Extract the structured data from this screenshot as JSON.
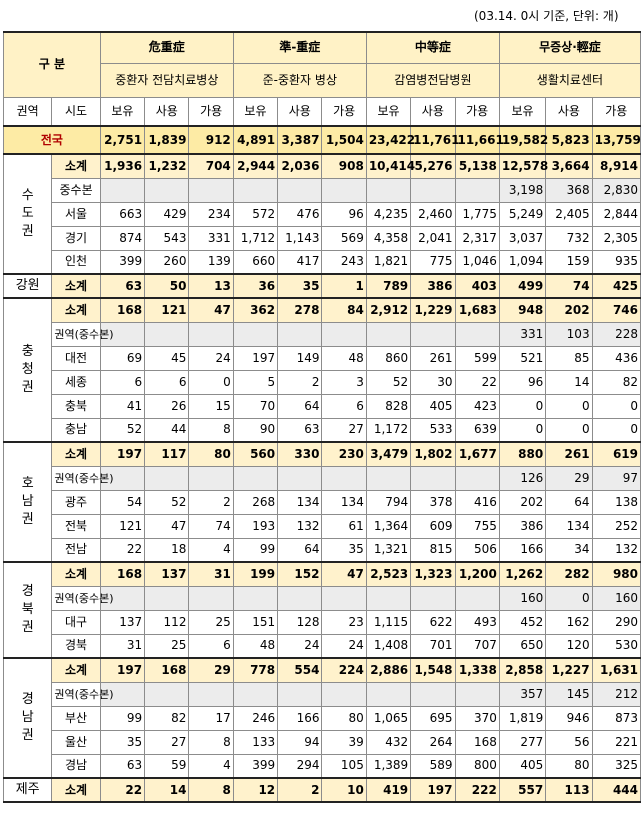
{
  "note": "(03.14. 0시 기준, 단위: 개)",
  "header": {
    "gubun": "구 분",
    "groups": [
      {
        "title": "危重症",
        "sub": "중환자 전담치료병상"
      },
      {
        "title": "準-重症",
        "sub": "준-중환자 병상"
      },
      {
        "title": "中等症",
        "sub": "감염병전담병원"
      },
      {
        "title": "무증상·輕症",
        "sub": "생활치료센터"
      }
    ],
    "region_col": "권역",
    "city_col": "시도",
    "metrics": [
      "보유",
      "사용",
      "가용"
    ]
  },
  "national": {
    "label": "전국",
    "values": [
      "2,751",
      "1,839",
      "912",
      "4,891",
      "3,387",
      "1,504",
      "23,422",
      "11,761",
      "11,661",
      "19,582",
      "5,823",
      "13,759"
    ]
  },
  "regions": [
    {
      "name": "수도권",
      "chars": [
        "수",
        "도",
        "권"
      ],
      "rows": [
        {
          "city": "소계",
          "type": "sub",
          "values": [
            "1,936",
            "1,232",
            "704",
            "2,944",
            "2,036",
            "908",
            "10,414",
            "5,276",
            "5,138",
            "12,578",
            "3,664",
            "8,914"
          ]
        },
        {
          "city": "중수본",
          "type": "hub",
          "values": [
            "",
            "",
            "",
            "",
            "",
            "",
            "",
            "",
            "",
            "3,198",
            "368",
            "2,830"
          ]
        },
        {
          "city": "서울",
          "type": "city",
          "values": [
            "663",
            "429",
            "234",
            "572",
            "476",
            "96",
            "4,235",
            "2,460",
            "1,775",
            "5,249",
            "2,405",
            "2,844"
          ]
        },
        {
          "city": "경기",
          "type": "city",
          "values": [
            "874",
            "543",
            "331",
            "1,712",
            "1,143",
            "569",
            "4,358",
            "2,041",
            "2,317",
            "3,037",
            "732",
            "2,305"
          ]
        },
        {
          "city": "인천",
          "type": "city",
          "values": [
            "399",
            "260",
            "139",
            "660",
            "417",
            "243",
            "1,821",
            "775",
            "1,046",
            "1,094",
            "159",
            "935"
          ]
        }
      ]
    },
    {
      "name": "강원",
      "chars": [
        "강원"
      ],
      "rows": [
        {
          "city": "소계",
          "type": "sub",
          "values": [
            "63",
            "50",
            "13",
            "36",
            "35",
            "1",
            "789",
            "386",
            "403",
            "499",
            "74",
            "425"
          ]
        }
      ]
    },
    {
      "name": "충청권",
      "chars": [
        "충",
        "청",
        "권"
      ],
      "rows": [
        {
          "city": "소계",
          "type": "sub",
          "values": [
            "168",
            "121",
            "47",
            "362",
            "278",
            "84",
            "2,912",
            "1,229",
            "1,683",
            "948",
            "202",
            "746"
          ]
        },
        {
          "city": "권역(중수본)",
          "type": "hub",
          "values": [
            "",
            "",
            "",
            "",
            "",
            "",
            "",
            "",
            "",
            "331",
            "103",
            "228"
          ]
        },
        {
          "city": "대전",
          "type": "city",
          "values": [
            "69",
            "45",
            "24",
            "197",
            "149",
            "48",
            "860",
            "261",
            "599",
            "521",
            "85",
            "436"
          ]
        },
        {
          "city": "세종",
          "type": "city",
          "values": [
            "6",
            "6",
            "0",
            "5",
            "2",
            "3",
            "52",
            "30",
            "22",
            "96",
            "14",
            "82"
          ]
        },
        {
          "city": "충북",
          "type": "city",
          "values": [
            "41",
            "26",
            "15",
            "70",
            "64",
            "6",
            "828",
            "405",
            "423",
            "0",
            "0",
            "0"
          ]
        },
        {
          "city": "충남",
          "type": "city",
          "values": [
            "52",
            "44",
            "8",
            "90",
            "63",
            "27",
            "1,172",
            "533",
            "639",
            "0",
            "0",
            "0"
          ]
        }
      ]
    },
    {
      "name": "호남권",
      "chars": [
        "호",
        "남",
        "권"
      ],
      "rows": [
        {
          "city": "소계",
          "type": "sub",
          "values": [
            "197",
            "117",
            "80",
            "560",
            "330",
            "230",
            "3,479",
            "1,802",
            "1,677",
            "880",
            "261",
            "619"
          ]
        },
        {
          "city": "권역(중수본)",
          "type": "hub",
          "values": [
            "",
            "",
            "",
            "",
            "",
            "",
            "",
            "",
            "",
            "126",
            "29",
            "97"
          ]
        },
        {
          "city": "광주",
          "type": "city",
          "values": [
            "54",
            "52",
            "2",
            "268",
            "134",
            "134",
            "794",
            "378",
            "416",
            "202",
            "64",
            "138"
          ]
        },
        {
          "city": "전북",
          "type": "city",
          "values": [
            "121",
            "47",
            "74",
            "193",
            "132",
            "61",
            "1,364",
            "609",
            "755",
            "386",
            "134",
            "252"
          ]
        },
        {
          "city": "전남",
          "type": "city",
          "values": [
            "22",
            "18",
            "4",
            "99",
            "64",
            "35",
            "1,321",
            "815",
            "506",
            "166",
            "34",
            "132"
          ]
        }
      ]
    },
    {
      "name": "경북권",
      "chars": [
        "경",
        "북",
        "권"
      ],
      "rows": [
        {
          "city": "소계",
          "type": "sub",
          "values": [
            "168",
            "137",
            "31",
            "199",
            "152",
            "47",
            "2,523",
            "1,323",
            "1,200",
            "1,262",
            "282",
            "980"
          ]
        },
        {
          "city": "권역(중수본)",
          "type": "hub",
          "values": [
            "",
            "",
            "",
            "",
            "",
            "",
            "",
            "",
            "",
            "160",
            "0",
            "160"
          ]
        },
        {
          "city": "대구",
          "type": "city",
          "values": [
            "137",
            "112",
            "25",
            "151",
            "128",
            "23",
            "1,115",
            "622",
            "493",
            "452",
            "162",
            "290"
          ]
        },
        {
          "city": "경북",
          "type": "city",
          "values": [
            "31",
            "25",
            "6",
            "48",
            "24",
            "24",
            "1,408",
            "701",
            "707",
            "650",
            "120",
            "530"
          ]
        }
      ]
    },
    {
      "name": "경남권",
      "chars": [
        "경",
        "남",
        "권"
      ],
      "rows": [
        {
          "city": "소계",
          "type": "sub",
          "values": [
            "197",
            "168",
            "29",
            "778",
            "554",
            "224",
            "2,886",
            "1,548",
            "1,338",
            "2,858",
            "1,227",
            "1,631"
          ]
        },
        {
          "city": "권역(중수본)",
          "type": "hub",
          "values": [
            "",
            "",
            "",
            "",
            "",
            "",
            "",
            "",
            "",
            "357",
            "145",
            "212"
          ]
        },
        {
          "city": "부산",
          "type": "city",
          "values": [
            "99",
            "82",
            "17",
            "246",
            "166",
            "80",
            "1,065",
            "695",
            "370",
            "1,819",
            "946",
            "873"
          ]
        },
        {
          "city": "울산",
          "type": "city",
          "values": [
            "35",
            "27",
            "8",
            "133",
            "94",
            "39",
            "432",
            "264",
            "168",
            "277",
            "56",
            "221"
          ]
        },
        {
          "city": "경남",
          "type": "city",
          "values": [
            "63",
            "59",
            "4",
            "399",
            "294",
            "105",
            "1,389",
            "589",
            "800",
            "405",
            "80",
            "325"
          ]
        }
      ]
    },
    {
      "name": "제주",
      "chars": [
        "제주"
      ],
      "rows": [
        {
          "city": "소계",
          "type": "sub",
          "values": [
            "22",
            "14",
            "8",
            "12",
            "2",
            "10",
            "419",
            "197",
            "222",
            "557",
            "113",
            "444"
          ]
        }
      ]
    }
  ]
}
